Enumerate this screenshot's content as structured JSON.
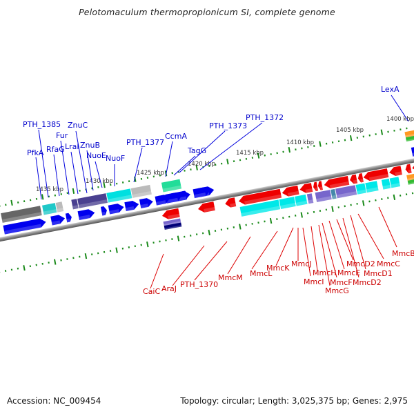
{
  "title": "Pelotomaculum thermopropionicum SI, complete genome",
  "footer": {
    "accession": "Accession: NC_009454",
    "summary": "Topology: circular; Length: 3,025,375 bp; Genes: 2,975"
  },
  "colors": {
    "forward_label": "#0000cc",
    "reverse_label": "#cc0000",
    "forward_gene": "#0000ee",
    "reverse_gene": "#ee0000",
    "tick": "#1a8a1a",
    "backbone": "#888888"
  },
  "scale_labels": [
    {
      "text": "1435 kbp",
      "pos": 1435
    },
    {
      "text": "1430 kbp",
      "pos": 1430
    },
    {
      "text": "1425 kbp",
      "pos": 1425
    },
    {
      "text": "1420 kbp",
      "pos": 1420
    },
    {
      "text": "1415 kbp",
      "pos": 1415
    },
    {
      "text": "1410 kbp",
      "pos": 1410
    },
    {
      "text": "1405 kbp",
      "pos": 1405
    },
    {
      "text": "1400 kbp",
      "pos": 1400
    }
  ],
  "forward_labels": [
    {
      "text": "PfkA"
    },
    {
      "text": "PTH_1385"
    },
    {
      "text": "RfaG"
    },
    {
      "text": "Fur"
    },
    {
      "text": "LraI"
    },
    {
      "text": "ZnuC"
    },
    {
      "text": "ZnuB"
    },
    {
      "text": "NuoE"
    },
    {
      "text": "NuoF"
    },
    {
      "text": "PTH_1377"
    },
    {
      "text": "CcmA"
    },
    {
      "text": "TagG"
    },
    {
      "text": "PTH_1373"
    },
    {
      "text": "PTH_1372"
    },
    {
      "text": "LexA"
    }
  ],
  "reverse_labels": [
    {
      "text": "CaiC"
    },
    {
      "text": "AraJ"
    },
    {
      "text": "PTH_1370"
    },
    {
      "text": "MmcM"
    },
    {
      "text": "MmcL"
    },
    {
      "text": "MmcK"
    },
    {
      "text": "MmcJ"
    },
    {
      "text": "MmcI"
    },
    {
      "text": "MmcH"
    },
    {
      "text": "MmcG"
    },
    {
      "text": "MmcF"
    },
    {
      "text": "MmcE"
    },
    {
      "text": "MmcD2"
    },
    {
      "text": "MmcD2"
    },
    {
      "text": "MmcD1"
    },
    {
      "text": "MmcC"
    },
    {
      "text": "MmcB"
    }
  ]
}
